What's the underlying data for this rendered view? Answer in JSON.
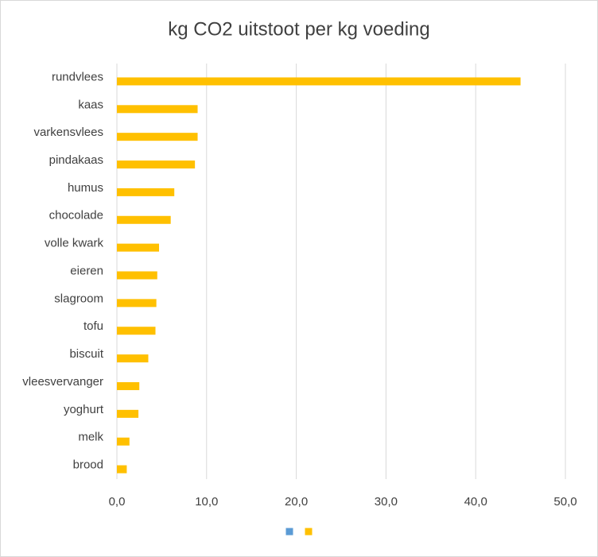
{
  "chart_data": {
    "type": "hbar",
    "title": "kg CO2 uitstoot per kg voeding",
    "categories": [
      "rundvlees",
      "kaas",
      "varkensvlees",
      "pindakaas",
      "humus",
      "chocolade",
      "volle kwark",
      "eieren",
      "slagroom",
      "tofu",
      "biscuit",
      "vleesvervanger",
      "yoghurt",
      "melk",
      "brood"
    ],
    "series": [
      {
        "color": "#5b9bd5",
        "values": [
          null,
          null,
          null,
          null,
          null,
          null,
          null,
          null,
          null,
          null,
          null,
          null,
          null,
          null,
          null
        ]
      },
      {
        "color": "#ffc000",
        "values": [
          45.0,
          9.0,
          9.0,
          8.7,
          6.4,
          6.0,
          4.7,
          4.5,
          4.4,
          4.3,
          3.5,
          2.5,
          2.4,
          1.4,
          1.1
        ]
      }
    ],
    "xlim": [
      0,
      50
    ],
    "xticks": [
      {
        "value": 0,
        "label": "0,0"
      },
      {
        "value": 10,
        "label": "10,0"
      },
      {
        "value": 20,
        "label": "20,0"
      },
      {
        "value": 30,
        "label": "30,0"
      },
      {
        "value": 40,
        "label": "40,0"
      },
      {
        "value": 50,
        "label": "50,0"
      }
    ],
    "grid": true
  }
}
